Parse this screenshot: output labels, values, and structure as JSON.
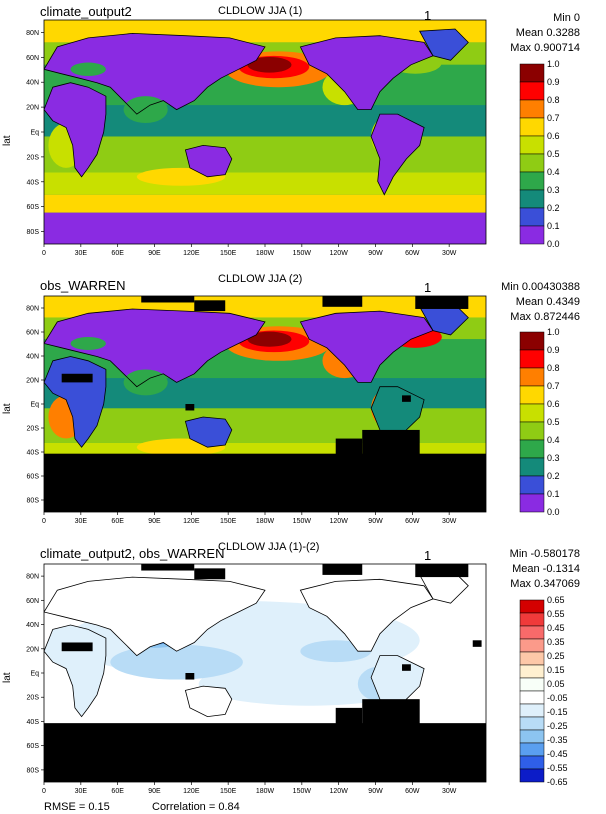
{
  "chart_data": [
    {
      "type": "heatmap",
      "title": "CLDLOW JJA (1)",
      "dataset": "climate_output2",
      "page_number": "1",
      "stats": {
        "min": "Min 0",
        "mean": "Mean 0.3288",
        "max": "Max 0.900714"
      },
      "ylabel": "lat",
      "xticks": [
        "0",
        "30E",
        "60E",
        "90E",
        "120E",
        "150E",
        "180W",
        "150W",
        "120W",
        "90W",
        "60W",
        "30W"
      ],
      "yticks": [
        "80N",
        "60N",
        "40N",
        "20N",
        "Eq",
        "20S",
        "40S",
        "60S",
        "80S"
      ],
      "colorbar_labels": [
        "1.0",
        "0.9",
        "0.8",
        "0.7",
        "0.6",
        "0.5",
        "0.4",
        "0.3",
        "0.2",
        "0.1",
        "0.0"
      ],
      "colorbar_colors": [
        "#8b0000",
        "#ff0000",
        "#ff7f00",
        "#ffd800",
        "#c8e000",
        "#8fcc14",
        "#2ea84a",
        "#148a7a",
        "#3a4fd8",
        "#8a2be2"
      ]
    },
    {
      "type": "heatmap",
      "title": "CLDLOW JJA (2)",
      "dataset": "obs_WARREN",
      "page_number": "1",
      "stats": {
        "min": "Min 0.00430388",
        "mean": "Mean 0.4349",
        "max": "Max 0.872446"
      },
      "ylabel": "lat",
      "xticks": [
        "0",
        "30E",
        "60E",
        "90E",
        "120E",
        "150E",
        "180W",
        "150W",
        "120W",
        "90W",
        "60W",
        "30W"
      ],
      "yticks": [
        "80N",
        "60N",
        "40N",
        "20N",
        "Eq",
        "20S",
        "40S",
        "60S",
        "80S"
      ],
      "colorbar_labels": [
        "1.0",
        "0.9",
        "0.8",
        "0.7",
        "0.6",
        "0.5",
        "0.4",
        "0.3",
        "0.2",
        "0.1",
        "0.0"
      ],
      "colorbar_colors": [
        "#8b0000",
        "#ff0000",
        "#ff7f00",
        "#ffd800",
        "#c8e000",
        "#8fcc14",
        "#2ea84a",
        "#148a7a",
        "#3a4fd8",
        "#8a2be2"
      ]
    },
    {
      "type": "heatmap",
      "title": "CLDLOW JJA (1)-(2)",
      "dataset": "climate_output2, obs_WARREN",
      "page_number": "1",
      "stats": {
        "min": "Min -0.580178",
        "mean": "Mean -0.1314",
        "max": "Max 0.347069"
      },
      "ylabel": "lat",
      "xticks": [
        "0",
        "30E",
        "60E",
        "90E",
        "120E",
        "150E",
        "180W",
        "150W",
        "120W",
        "90W",
        "60W",
        "30W"
      ],
      "yticks": [
        "80N",
        "60N",
        "40N",
        "20N",
        "Eq",
        "20S",
        "40S",
        "60S",
        "80S"
      ],
      "colorbar_labels": [
        "0.65",
        "0.55",
        "0.45",
        "0.35",
        "0.25",
        "0.15",
        "0.05",
        "-0.05",
        "-0.15",
        "-0.25",
        "-0.35",
        "-0.45",
        "-0.55",
        "-0.65"
      ],
      "colorbar_colors": [
        "#d40000",
        "#f03a3a",
        "#f86a6a",
        "#fb9a8a",
        "#fdc8a8",
        "#fff0d0",
        "#f8fff8",
        "#ffffff",
        "#dff0fb",
        "#b8dcf6",
        "#8cc4f0",
        "#5a9ff0",
        "#2f5fe8",
        "#0c1cc8"
      ],
      "rmse": "RMSE = 0.15",
      "correlation": "Correlation = 0.84"
    }
  ]
}
